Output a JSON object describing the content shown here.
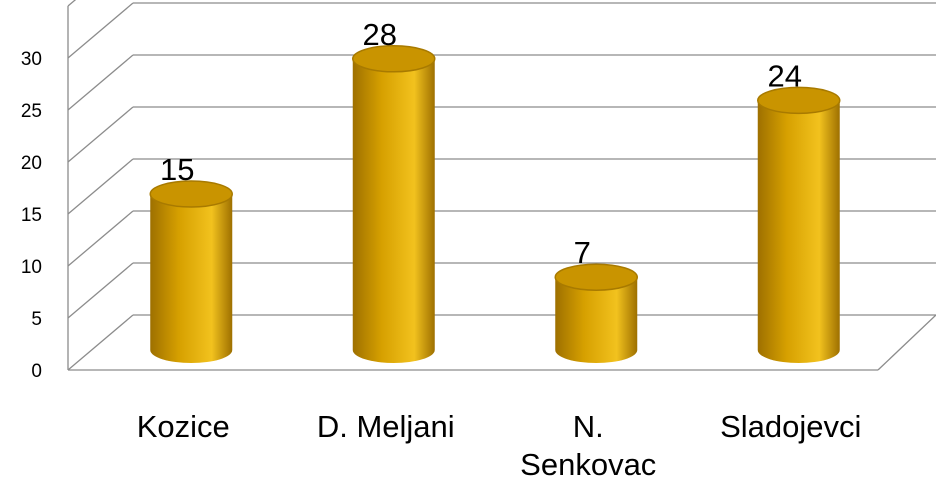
{
  "chart_data": {
    "type": "bar",
    "style": "3d-cylinder",
    "categories": [
      "Kozice",
      "D. Meljani",
      "N. Senkovac",
      "Sladojevci"
    ],
    "category_lines": [
      [
        "Kozice"
      ],
      [
        "D. Meljani"
      ],
      [
        "N.",
        "Senkovac"
      ],
      [
        "Sladojevci"
      ]
    ],
    "values": [
      15,
      28,
      7,
      24
    ],
    "data_labels": [
      "15",
      "28",
      "7",
      "24"
    ],
    "y_ticks": [
      "0",
      "5",
      "10",
      "15",
      "20",
      "25",
      "30"
    ],
    "ylim": [
      0,
      35
    ],
    "title": "",
    "xlabel": "",
    "ylabel": "",
    "grid": true,
    "legend": "none",
    "colors": {
      "bar_side": "#d6a000",
      "bar_light": "#f2c21e",
      "bar_dark": "#9e7000",
      "bar_top": "#c99400",
      "bar_top_rim": "#a87a00",
      "grid": "#8c8c8c"
    }
  }
}
